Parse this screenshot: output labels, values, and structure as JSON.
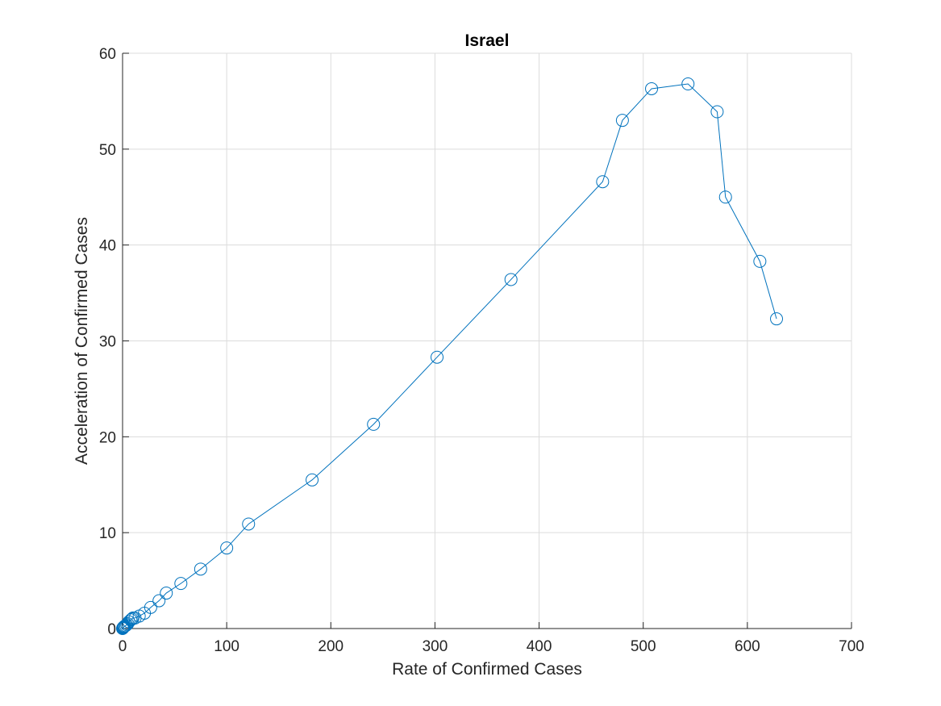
{
  "chart_data": {
    "type": "line",
    "title": "Israel",
    "xlabel": "Rate of Confirmed Cases",
    "ylabel": "Acceleration of Confirmed Cases",
    "xlim": [
      0,
      700
    ],
    "ylim": [
      0,
      60
    ],
    "xticks": [
      0,
      100,
      200,
      300,
      400,
      500,
      600,
      700
    ],
    "yticks": [
      0,
      10,
      20,
      30,
      40,
      50,
      60
    ],
    "grid": true,
    "marker": "circle",
    "color": "#0072BD",
    "series": [
      {
        "x": [
          0,
          0.3,
          0.6,
          1,
          1.5,
          2,
          3,
          4,
          5,
          6,
          8,
          9,
          10,
          12,
          16,
          21,
          27,
          35,
          42,
          56,
          75,
          100,
          121,
          182,
          241,
          302,
          373,
          461,
          480,
          508,
          543,
          571,
          579,
          612,
          628
        ],
        "y": [
          0,
          0.05,
          0.1,
          0.15,
          0.2,
          0.25,
          0.3,
          0.4,
          0.5,
          0.7,
          0.9,
          1.0,
          1.1,
          1.1,
          1.3,
          1.6,
          2.2,
          2.9,
          3.7,
          4.7,
          6.2,
          8.4,
          10.9,
          15.5,
          21.3,
          28.3,
          36.4,
          46.6,
          53.0,
          56.3,
          56.8,
          53.9,
          45.0,
          38.3,
          32.3
        ]
      }
    ]
  }
}
